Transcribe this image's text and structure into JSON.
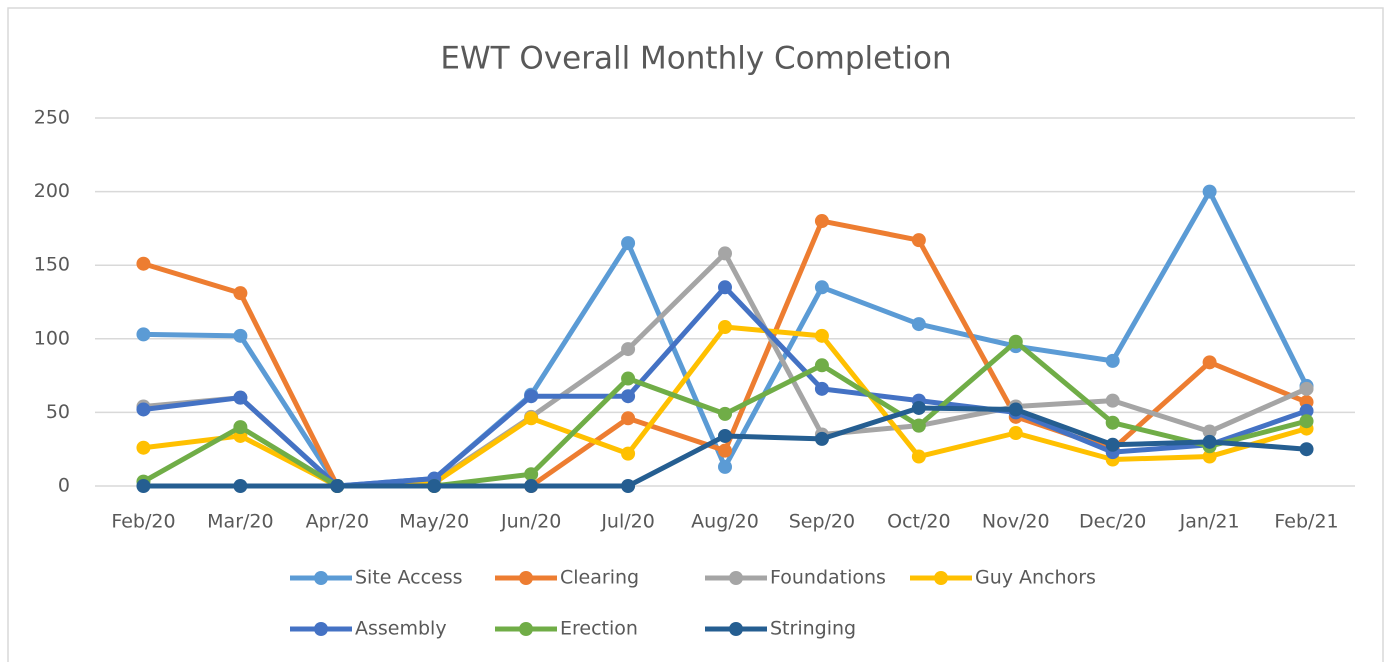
{
  "chart_data": {
    "type": "line",
    "title": "EWT Overall Monthly Completion",
    "categories": [
      "Feb/20",
      "Mar/20",
      "Apr/20",
      "May/20",
      "Jun/20",
      "Jul/20",
      "Aug/20",
      "Sep/20",
      "Oct/20",
      "Nov/20",
      "Dec/20",
      "Jan/21",
      "Feb/21"
    ],
    "series": [
      {
        "name": "Site Access",
        "color": "#5b9bd5",
        "values": [
          103,
          102,
          0,
          5,
          62,
          165,
          13,
          135,
          110,
          95,
          85,
          200,
          68
        ]
      },
      {
        "name": "Clearing",
        "color": "#ed7d31",
        "values": [
          151,
          131,
          0,
          0,
          0,
          46,
          24,
          180,
          167,
          47,
          25,
          84,
          57
        ]
      },
      {
        "name": "Foundations",
        "color": "#a5a5a5",
        "values": [
          54,
          60,
          0,
          3,
          47,
          93,
          158,
          35,
          41,
          54,
          58,
          37,
          66
        ]
      },
      {
        "name": "Guy Anchors",
        "color": "#ffc000",
        "values": [
          26,
          34,
          0,
          2,
          46,
          22,
          108,
          102,
          20,
          36,
          18,
          20,
          39
        ]
      },
      {
        "name": "Assembly",
        "color": "#4472c4",
        "values": [
          52,
          60,
          0,
          5,
          61,
          61,
          135,
          66,
          58,
          50,
          23,
          28,
          51
        ]
      },
      {
        "name": "Erection",
        "color": "#70ad47",
        "values": [
          3,
          40,
          0,
          0,
          8,
          73,
          49,
          82,
          41,
          98,
          43,
          27,
          44
        ]
      },
      {
        "name": "Stringing",
        "color": "#255e91",
        "values": [
          0,
          0,
          0,
          0,
          0,
          0,
          34,
          32,
          53,
          52,
          28,
          30,
          25
        ]
      }
    ],
    "ylim": [
      0,
      250
    ],
    "yticks": [
      0,
      50,
      100,
      150,
      200,
      250
    ],
    "grid": true,
    "legend": "bottom"
  }
}
